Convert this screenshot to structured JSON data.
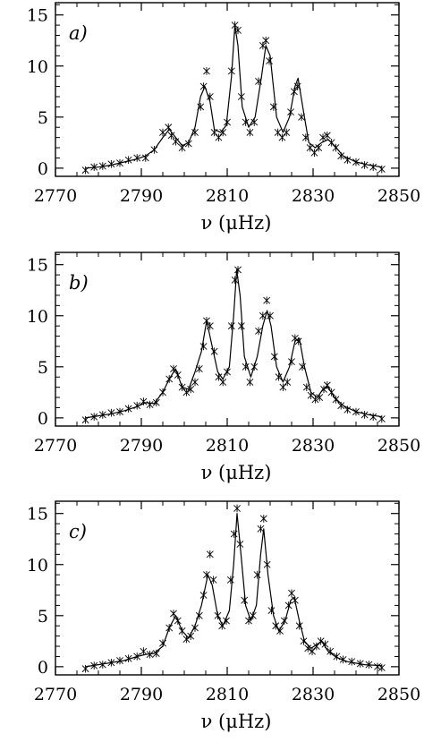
{
  "chart_data": [
    {
      "type": "line",
      "panel_label": "a)",
      "xlabel": "ν (μHz)",
      "xlim": [
        2770,
        2850
      ],
      "ylim": [
        -0.8,
        16.2
      ],
      "xticks": [
        2770,
        2790,
        2810,
        2830,
        2850
      ],
      "yticks": [
        0,
        5,
        10,
        15
      ],
      "grid": false,
      "series": [
        {
          "style": "solid-line",
          "x": [
            2777,
            2780,
            2783,
            2786,
            2789,
            2791,
            2793,
            2795,
            2796.5,
            2798,
            2799.5,
            2801,
            2802.5,
            2803.8,
            2804.8,
            2806,
            2807,
            2808.5,
            2809.8,
            2811,
            2811.8,
            2812.5,
            2813.5,
            2815,
            2816.5,
            2818,
            2819,
            2820,
            2821.5,
            2823,
            2824.5,
            2825.8,
            2826.5,
            2827.8,
            2829,
            2830.5,
            2832,
            2833.5,
            2835,
            2837,
            2840,
            2843,
            2846
          ],
          "y": [
            0,
            0.1,
            0.3,
            0.6,
            0.9,
            1.2,
            1.8,
            3,
            3.8,
            3,
            2.2,
            2.5,
            4,
            7,
            8,
            6.5,
            3.8,
            3.5,
            4.2,
            9,
            14,
            12,
            6,
            4,
            5,
            9,
            12,
            11,
            5,
            3.5,
            5,
            8,
            8.8,
            5.5,
            2.5,
            2,
            2.5,
            2.8,
            2.2,
            1.2,
            0.6,
            0.3,
            0.1
          ]
        },
        {
          "style": "asterisk-markers",
          "x": [
            2777,
            2779,
            2781,
            2783,
            2785,
            2787,
            2789,
            2791,
            2793,
            2795,
            2796.3,
            2797,
            2798,
            2799.5,
            2801,
            2802.5,
            2803.8,
            2804.5,
            2805.2,
            2806,
            2807,
            2808,
            2809,
            2810,
            2811,
            2811.8,
            2812.5,
            2813.3,
            2814.3,
            2815.3,
            2816.3,
            2817.3,
            2818.3,
            2819,
            2819.8,
            2820.8,
            2821.8,
            2822.8,
            2823.8,
            2824.8,
            2825.6,
            2826.4,
            2827.3,
            2828.3,
            2829.3,
            2830.3,
            2831.3,
            2832.3,
            2833.3,
            2834.3,
            2835.3,
            2836.5,
            2838,
            2840,
            2842,
            2844,
            2846
          ],
          "y": [
            -0.2,
            0.1,
            0.2,
            0.4,
            0.5,
            0.8,
            1,
            1,
            1.8,
            3.5,
            4,
            3.2,
            2.6,
            2,
            2.4,
            3.5,
            6,
            8,
            9.5,
            7,
            3.5,
            3,
            3.5,
            4.5,
            9.5,
            14,
            13.5,
            7,
            4.5,
            3.5,
            4.5,
            8.5,
            12,
            12.5,
            10.5,
            6,
            3.5,
            3,
            3.5,
            5.5,
            7.5,
            8,
            5,
            3,
            2,
            1.5,
            2,
            3,
            3.2,
            2.5,
            2,
            1.2,
            0.8,
            0.6,
            0.3,
            0.1,
            -0.1
          ]
        }
      ]
    },
    {
      "type": "line",
      "panel_label": "b)",
      "xlabel": "ν (μHz)",
      "xlim": [
        2770,
        2850
      ],
      "ylim": [
        -0.8,
        16.2
      ],
      "xticks": [
        2770,
        2790,
        2810,
        2830,
        2850
      ],
      "yticks": [
        0,
        5,
        10,
        15
      ],
      "grid": false,
      "series": [
        {
          "style": "solid-line",
          "x": [
            2777,
            2780,
            2783,
            2786,
            2789,
            2791,
            2793,
            2795,
            2796.5,
            2798,
            2799.5,
            2801,
            2802.5,
            2804,
            2805.2,
            2806.5,
            2807.8,
            2809,
            2810.5,
            2811.5,
            2812.2,
            2813,
            2814,
            2815.5,
            2817,
            2818.3,
            2819.3,
            2820.2,
            2821.5,
            2823,
            2824.5,
            2825.8,
            2826.8,
            2828,
            2829.5,
            2831,
            2832.3,
            2833.5,
            2835,
            2837,
            2840,
            2843,
            2846
          ],
          "y": [
            0,
            0.2,
            0.4,
            0.7,
            1.1,
            1.5,
            1.4,
            2.5,
            3.8,
            4.8,
            3,
            2.8,
            4.5,
            6.5,
            9.5,
            7,
            4.5,
            3.8,
            5,
            10,
            14.5,
            12,
            6,
            4,
            6,
            9,
            10.5,
            9,
            5,
            3.5,
            5,
            7.5,
            7.8,
            5,
            2.5,
            2,
            2.8,
            3,
            2,
            1.2,
            0.6,
            0.3,
            0.1
          ]
        },
        {
          "style": "asterisk-markers",
          "x": [
            2777,
            2779,
            2781,
            2783,
            2785,
            2787,
            2789,
            2790.5,
            2792,
            2793.5,
            2795,
            2796.5,
            2797.5,
            2798.5,
            2799.5,
            2800.5,
            2801.5,
            2802.5,
            2803.5,
            2804.5,
            2805.2,
            2806,
            2807,
            2808,
            2809,
            2810,
            2811,
            2811.8,
            2812.5,
            2813.3,
            2814.3,
            2815.3,
            2816.3,
            2817.3,
            2818.3,
            2819.2,
            2820,
            2821,
            2822,
            2823,
            2824,
            2825,
            2825.8,
            2826.6,
            2827.5,
            2828.5,
            2829.5,
            2830.5,
            2831.5,
            2832.5,
            2833.3,
            2834.3,
            2835.3,
            2836.5,
            2838,
            2840,
            2842,
            2844,
            2846
          ],
          "y": [
            -0.2,
            0.1,
            0.3,
            0.5,
            0.6,
            0.9,
            1.2,
            1.6,
            1.3,
            1.5,
            2.5,
            3.8,
            4.8,
            4.2,
            3,
            2.5,
            2.8,
            3.5,
            4.8,
            7,
            9.5,
            9,
            6.5,
            4,
            3.5,
            4.5,
            9,
            13.5,
            14.5,
            9,
            5,
            3.5,
            5,
            8.5,
            10,
            11.5,
            10,
            6,
            4,
            3,
            3.5,
            5.5,
            7.8,
            7.5,
            5,
            3,
            2.2,
            1.8,
            2,
            2.8,
            3.2,
            2.5,
            1.8,
            1.2,
            0.8,
            0.6,
            0.3,
            0.1,
            -0.1
          ]
        }
      ]
    },
    {
      "type": "line",
      "panel_label": "c)",
      "xlabel": "ν (μHz)",
      "xlim": [
        2770,
        2850
      ],
      "ylim": [
        -0.8,
        16.2
      ],
      "xticks": [
        2770,
        2790,
        2810,
        2830,
        2850
      ],
      "yticks": [
        0,
        5,
        10,
        15
      ],
      "grid": false,
      "series": [
        {
          "style": "solid-line",
          "x": [
            2777,
            2780,
            2783,
            2786,
            2789,
            2791,
            2793,
            2795,
            2796.5,
            2798,
            2799.5,
            2801,
            2802.5,
            2804,
            2805.5,
            2806.5,
            2807.8,
            2809,
            2810.5,
            2811.5,
            2812.3,
            2813.2,
            2814.3,
            2815.5,
            2816.8,
            2817.8,
            2818.5,
            2819.5,
            2820.8,
            2822,
            2823.5,
            2824.8,
            2825.6,
            2826.8,
            2828,
            2829.5,
            2831,
            2832,
            2833.5,
            2835.5,
            2838,
            2842,
            2846
          ],
          "y": [
            0,
            0.2,
            0.4,
            0.6,
            1,
            1.2,
            1.3,
            2,
            3.8,
            5,
            3.5,
            2.8,
            4,
            6,
            9,
            8,
            5,
            4,
            5.5,
            10,
            15,
            11,
            6,
            4.5,
            6,
            11,
            13.5,
            9,
            5,
            3.5,
            4.5,
            6.5,
            6.8,
            4.5,
            2.5,
            1.8,
            2.2,
            2.5,
            1.5,
            0.9,
            0.5,
            0.2,
            0.1
          ]
        },
        {
          "style": "asterisk-markers",
          "x": [
            2777,
            2779,
            2781,
            2783,
            2785,
            2787,
            2789,
            2790.5,
            2792,
            2793.5,
            2795,
            2796.5,
            2797.5,
            2798.5,
            2799.5,
            2800.5,
            2801.5,
            2802.5,
            2803.5,
            2804.5,
            2805.2,
            2806,
            2806.8,
            2807.8,
            2808.8,
            2809.8,
            2810.8,
            2811.6,
            2812.3,
            2813,
            2814,
            2815,
            2816,
            2817,
            2817.8,
            2818.5,
            2819.3,
            2820.3,
            2821.3,
            2822.3,
            2823.3,
            2824.3,
            2825,
            2825.8,
            2826.8,
            2827.8,
            2828.8,
            2829.8,
            2830.8,
            2831.8,
            2832.8,
            2834,
            2835.5,
            2837,
            2839,
            2841,
            2843,
            2845,
            2846
          ],
          "y": [
            -0.2,
            0.1,
            0.2,
            0.4,
            0.6,
            0.8,
            1,
            1.5,
            1.2,
            1.3,
            2.3,
            3.8,
            5.2,
            4.5,
            3.5,
            2.7,
            3,
            3.8,
            5,
            7,
            9,
            11,
            8.5,
            5,
            4,
            4.5,
            8.5,
            13,
            15.5,
            12,
            6.5,
            4.5,
            5,
            9,
            13.5,
            14.5,
            10,
            5.5,
            4,
            3.5,
            4.5,
            6,
            7.2,
            6.5,
            4,
            2.5,
            1.8,
            1.5,
            2,
            2.5,
            2.2,
            1.5,
            1,
            0.7,
            0.5,
            0.3,
            0.2,
            0,
            -0.1
          ]
        }
      ]
    }
  ]
}
